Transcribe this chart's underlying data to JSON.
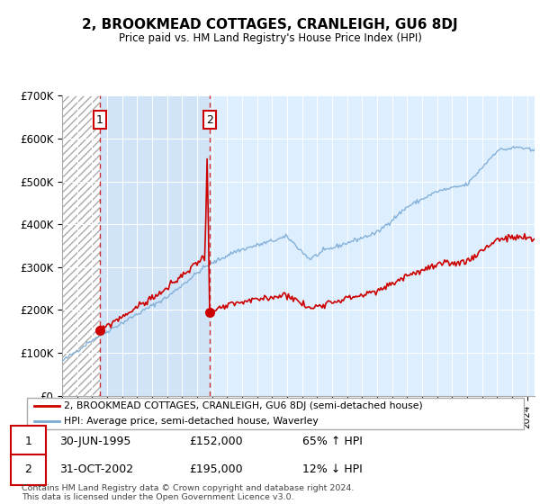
{
  "title": "2, BROOKMEAD COTTAGES, CRANLEIGH, GU6 8DJ",
  "subtitle": "Price paid vs. HM Land Registry's House Price Index (HPI)",
  "sale1_date": 1995.496,
  "sale1_price": 152000,
  "sale1_label": "1",
  "sale1_display": "30-JUN-1995",
  "sale1_display_price": "£152,000",
  "sale1_hpi_note": "65% ↑ HPI",
  "sale2_date": 2002.831,
  "sale2_price": 195000,
  "sale2_label": "2",
  "sale2_display": "31-OCT-2002",
  "sale2_display_price": "£195,000",
  "sale2_hpi_note": "12% ↓ HPI",
  "ylim": [
    0,
    700000
  ],
  "xlim_start": 1993.0,
  "xlim_end": 2024.5,
  "property_color": "#cc0000",
  "hpi_color": "#7aaad4",
  "legend_property_label": "2, BROOKMEAD COTTAGES, CRANLEIGH, GU6 8DJ (semi-detached house)",
  "legend_hpi_label": "HPI: Average price, semi-detached house, Waverley",
  "footer": "Contains HM Land Registry data © Crown copyright and database right 2024.\nThis data is licensed under the Open Government Licence v3.0.",
  "yticks": [
    0,
    100000,
    200000,
    300000,
    400000,
    500000,
    600000,
    700000
  ],
  "ytick_labels": [
    "£0",
    "£100K",
    "£200K",
    "£300K",
    "£400K",
    "£500K",
    "£600K",
    "£700K"
  ],
  "bg_color": "#ddeeff",
  "hatch_bg": "white",
  "shade_between_color": "#ddeeff"
}
